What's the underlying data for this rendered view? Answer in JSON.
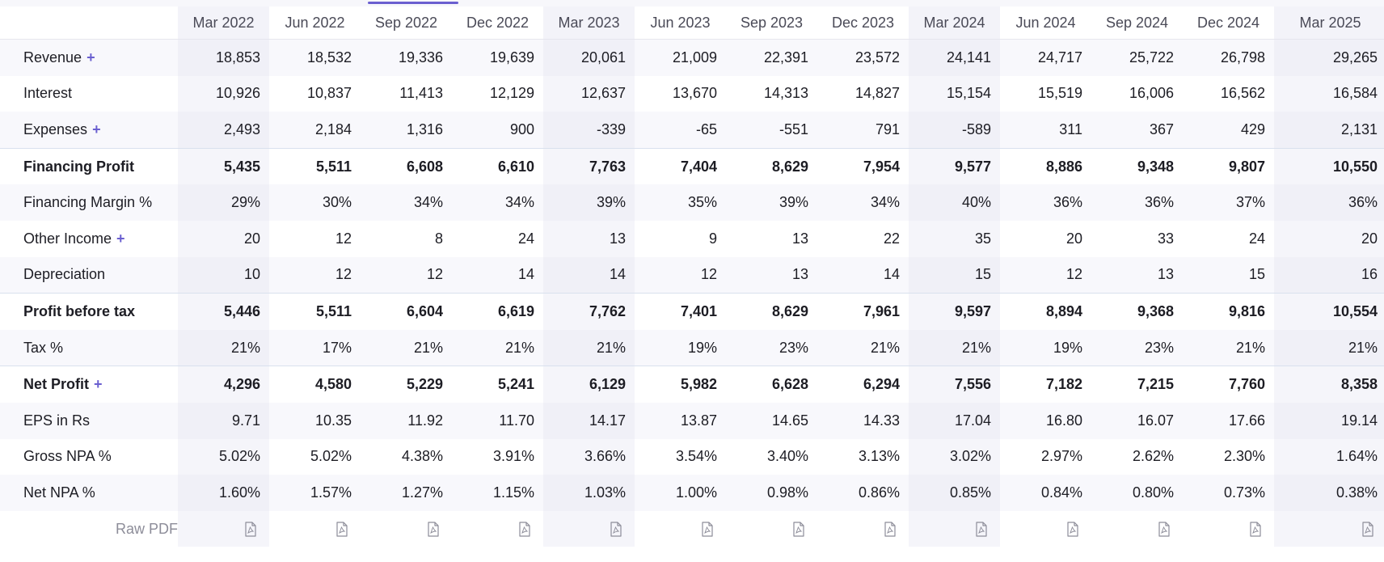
{
  "periods": [
    "Mar 2022",
    "Jun 2022",
    "Sep 2022",
    "Dec 2022",
    "Mar 2023",
    "Jun 2023",
    "Sep 2023",
    "Dec 2023",
    "Mar 2024",
    "Jun 2024",
    "Sep 2024",
    "Dec 2024",
    "Mar 2025"
  ],
  "expand_symbol": "+",
  "rows": [
    {
      "label": "Revenue",
      "expandable": true,
      "bold": false,
      "values": [
        "18,853",
        "18,532",
        "19,336",
        "19,639",
        "20,061",
        "21,009",
        "22,391",
        "23,572",
        "24,141",
        "24,717",
        "25,722",
        "26,798",
        "29,265"
      ]
    },
    {
      "label": "Interest",
      "expandable": false,
      "bold": false,
      "values": [
        "10,926",
        "10,837",
        "11,413",
        "12,129",
        "12,637",
        "13,670",
        "14,313",
        "14,827",
        "15,154",
        "15,519",
        "16,006",
        "16,562",
        "16,584"
      ]
    },
    {
      "label": "Expenses",
      "expandable": true,
      "bold": false,
      "values": [
        "2,493",
        "2,184",
        "1,316",
        "900",
        "-339",
        "-65",
        "-551",
        "791",
        "-589",
        "311",
        "367",
        "429",
        "2,131"
      ]
    },
    {
      "label": "Financing Profit",
      "expandable": false,
      "bold": true,
      "values": [
        "5,435",
        "5,511",
        "6,608",
        "6,610",
        "7,763",
        "7,404",
        "8,629",
        "7,954",
        "9,577",
        "8,886",
        "9,348",
        "9,807",
        "10,550"
      ]
    },
    {
      "label": "Financing Margin %",
      "expandable": false,
      "bold": false,
      "values": [
        "29%",
        "30%",
        "34%",
        "34%",
        "39%",
        "35%",
        "39%",
        "34%",
        "40%",
        "36%",
        "36%",
        "37%",
        "36%"
      ]
    },
    {
      "label": "Other Income",
      "expandable": true,
      "bold": false,
      "values": [
        "20",
        "12",
        "8",
        "24",
        "13",
        "9",
        "13",
        "22",
        "35",
        "20",
        "33",
        "24",
        "20"
      ]
    },
    {
      "label": "Depreciation",
      "expandable": false,
      "bold": false,
      "values": [
        "10",
        "12",
        "12",
        "14",
        "14",
        "12",
        "13",
        "14",
        "15",
        "12",
        "13",
        "15",
        "16"
      ]
    },
    {
      "label": "Profit before tax",
      "expandable": false,
      "bold": true,
      "values": [
        "5,446",
        "5,511",
        "6,604",
        "6,619",
        "7,762",
        "7,401",
        "8,629",
        "7,961",
        "9,597",
        "8,894",
        "9,368",
        "9,816",
        "10,554"
      ]
    },
    {
      "label": "Tax %",
      "expandable": false,
      "bold": false,
      "values": [
        "21%",
        "17%",
        "21%",
        "21%",
        "21%",
        "19%",
        "23%",
        "21%",
        "21%",
        "19%",
        "23%",
        "21%",
        "21%"
      ]
    },
    {
      "label": "Net Profit",
      "expandable": true,
      "bold": true,
      "values": [
        "4,296",
        "4,580",
        "5,229",
        "5,241",
        "6,129",
        "5,982",
        "6,628",
        "6,294",
        "7,556",
        "7,182",
        "7,215",
        "7,760",
        "8,358"
      ]
    },
    {
      "label": "EPS in Rs",
      "expandable": false,
      "bold": false,
      "values": [
        "9.71",
        "10.35",
        "11.92",
        "11.70",
        "14.17",
        "13.87",
        "14.65",
        "14.33",
        "17.04",
        "16.80",
        "16.07",
        "17.66",
        "19.14"
      ]
    },
    {
      "label": "Gross NPA %",
      "expandable": false,
      "bold": false,
      "values": [
        "5.02%",
        "5.02%",
        "4.38%",
        "3.91%",
        "3.66%",
        "3.54%",
        "3.40%",
        "3.13%",
        "3.02%",
        "2.97%",
        "2.62%",
        "2.30%",
        "1.64%"
      ]
    },
    {
      "label": "Net NPA %",
      "expandable": false,
      "bold": false,
      "values": [
        "1.60%",
        "1.57%",
        "1.27%",
        "1.15%",
        "1.03%",
        "1.00%",
        "0.98%",
        "0.86%",
        "0.85%",
        "0.84%",
        "0.80%",
        "0.73%",
        "0.38%"
      ]
    }
  ],
  "raw_pdf": {
    "label": "Raw PDF",
    "icon": "pdf-file-icon"
  },
  "colors": {
    "accent": "#6a5fd0",
    "shaded_column": "#f3f3f9",
    "separator": "#d9e1ee",
    "muted_text": "#8d8d99"
  }
}
